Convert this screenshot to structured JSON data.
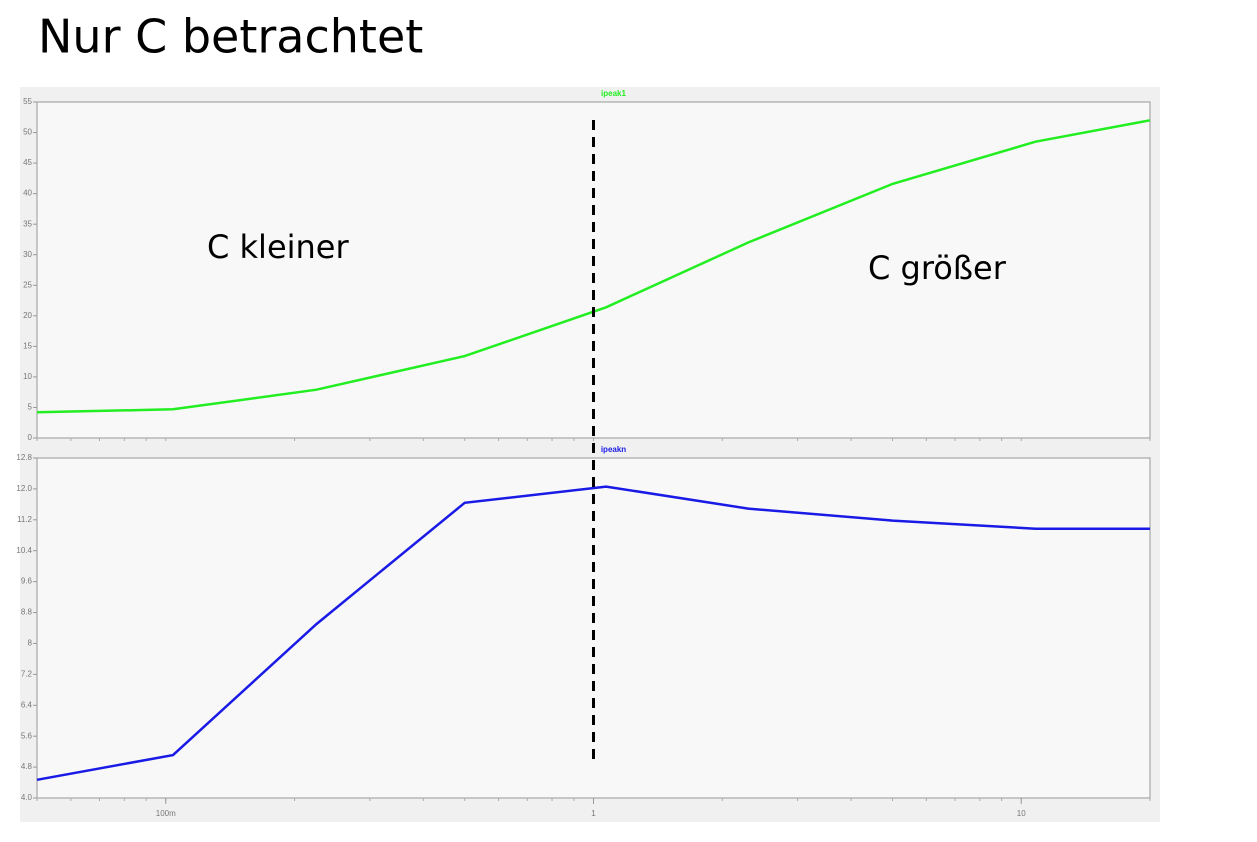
{
  "title": "Nur C betrachtet",
  "reference_x": 1,
  "chart_data": [
    {
      "type": "line",
      "x": [
        0.05,
        0.104,
        0.225,
        0.5,
        1.07,
        2.3,
        5,
        10.8,
        20
      ],
      "series": [
        {
          "name": "ipeak1",
          "color": "#22ee22",
          "values": [
            4.2,
            4.7,
            7.9,
            13.4,
            21.4,
            32,
            41.6,
            48.5,
            52
          ]
        }
      ],
      "xlim": [
        0.05,
        20
      ],
      "xscale": "log",
      "ylim": [
        0,
        55
      ],
      "yticks": [
        0,
        5,
        10,
        15,
        20,
        25,
        30,
        35,
        40,
        45,
        50,
        55
      ],
      "annotations": [
        "C kleiner",
        "C größer"
      ]
    },
    {
      "type": "line",
      "x": [
        0.05,
        0.104,
        0.225,
        0.5,
        1.07,
        2.3,
        5,
        10.8,
        20
      ],
      "series": [
        {
          "name": "ipeakn",
          "color": "#1a1ae6",
          "values": [
            4.47,
            5.11,
            8.5,
            11.64,
            12.06,
            11.49,
            11.18,
            10.97,
            10.97
          ]
        }
      ],
      "xlim": [
        0.05,
        20
      ],
      "xscale": "log",
      "xticks": [
        {
          "value": 0.1,
          "label": "100m"
        },
        1,
        10
      ],
      "ylim": [
        4,
        12.8
      ],
      "yticks": [
        {
          "value": 4,
          "label": "4.0"
        },
        4.8,
        5.6,
        6.4,
        7.2,
        8,
        8.8,
        9.6,
        10.4,
        11.2,
        {
          "value": 12,
          "label": "12.0"
        },
        12.8
      ]
    }
  ]
}
